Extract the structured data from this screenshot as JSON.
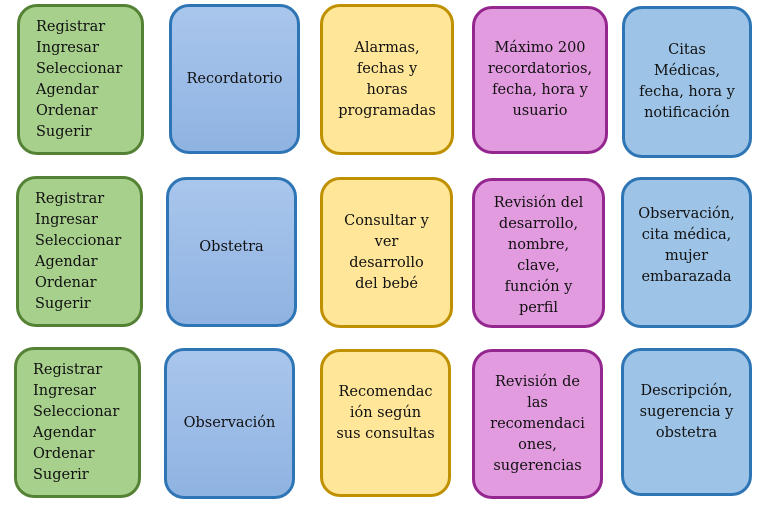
{
  "rows": [
    {
      "actions": [
        "Registrar",
        "Ingresar",
        "Seleccionar",
        "Agendar",
        "Ordenar",
        "Sugerir"
      ],
      "module": "Recordatorio",
      "function": [
        "Alarmas,",
        "fechas y",
        "horas",
        "programadas"
      ],
      "data": [
        "Máximo 200",
        "recordatorios,",
        "fecha, hora y",
        "usuario"
      ],
      "output": [
        "Citas",
        "Médicas,",
        "fecha, hora y",
        "notificación"
      ]
    },
    {
      "actions": [
        "Registrar",
        "Ingresar",
        "Seleccionar",
        "Agendar",
        "Ordenar",
        "Sugerir"
      ],
      "module": "Obstetra",
      "function": [
        "Consultar y",
        "ver",
        "desarrollo",
        "del bebé"
      ],
      "data": [
        "Revisión del",
        "desarrollo,",
        "nombre,",
        "clave,",
        "función y",
        "perfil"
      ],
      "output": [
        "Observación,",
        "cita médica,",
        "mujer",
        "embarazada"
      ]
    },
    {
      "actions": [
        "Registrar",
        "Ingresar",
        "Seleccionar",
        "Agendar",
        "Ordenar",
        "Sugerir"
      ],
      "module": "Observación",
      "function": [
        "Recomendac",
        "ión según",
        "sus consultas"
      ],
      "data": [
        "Revisión de",
        "las",
        "recomendaci",
        "ones,",
        "sugerencias"
      ],
      "output": [
        "Descripción,",
        "sugerencia y",
        "obstetra"
      ]
    }
  ],
  "colors": {
    "actions": "#a8d08d",
    "module": "#99bbe8",
    "function": "#ffe699",
    "data": "#e39be0",
    "output": "#9dc3e6"
  }
}
